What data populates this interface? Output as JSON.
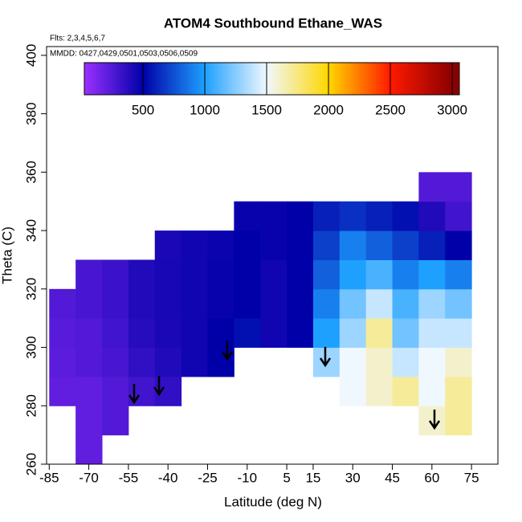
{
  "chart_data": {
    "type": "heatmap",
    "title": "ATOM4 Southbound Ethane_WAS",
    "annotations": [
      "Flts: 2,3,4,5,6,7",
      "MMDD: 0427,0429,0501,0503,0506,0509"
    ],
    "xlabel": "Latitude (deg N)",
    "ylabel": "Theta (C)",
    "xlim": [
      -86,
      85
    ],
    "xticks": [
      -85,
      -70,
      -55,
      -40,
      -25,
      -10,
      5,
      15,
      30,
      45,
      60,
      75
    ],
    "ylim": [
      260,
      403
    ],
    "yticks": [
      260,
      280,
      300,
      320,
      340,
      360,
      380,
      400
    ],
    "x_edges": [
      -85,
      -75,
      -65,
      -55,
      -45,
      -35,
      -25,
      -15,
      -5,
      5,
      15,
      25,
      35,
      45,
      55,
      65,
      75
    ],
    "y_edges": [
      260,
      270,
      280,
      290,
      300,
      310,
      320,
      330,
      340,
      350,
      360
    ],
    "z": [
      [
        null,
        200,
        null,
        null,
        null,
        null,
        null,
        null,
        null,
        null,
        null,
        null,
        null,
        null,
        null,
        null
      ],
      [
        null,
        200,
        250,
        null,
        null,
        null,
        null,
        null,
        null,
        null,
        null,
        null,
        null,
        null,
        1600,
        1700
      ],
      [
        200,
        200,
        250,
        300,
        350,
        null,
        null,
        null,
        null,
        null,
        null,
        1500,
        1600,
        1700,
        1500,
        1700
      ],
      [
        220,
        250,
        280,
        350,
        400,
        450,
        500,
        null,
        null,
        null,
        1300,
        1500,
        1600,
        1400,
        1500,
        1600
      ],
      [
        230,
        250,
        300,
        380,
        420,
        450,
        500,
        550,
        450,
        500,
        1000,
        1300,
        1700,
        1200,
        1400,
        1400
      ],
      [
        250,
        280,
        320,
        400,
        430,
        450,
        480,
        500,
        450,
        500,
        900,
        1200,
        1400,
        1100,
        1300,
        1200
      ],
      [
        null,
        280,
        320,
        400,
        430,
        450,
        480,
        500,
        450,
        500,
        800,
        1000,
        1100,
        900,
        1000,
        900
      ],
      [
        null,
        null,
        null,
        null,
        420,
        450,
        470,
        500,
        480,
        500,
        700,
        900,
        800,
        700,
        600,
        500
      ],
      [
        null,
        null,
        null,
        null,
        null,
        null,
        null,
        480,
        480,
        500,
        600,
        650,
        600,
        550,
        400,
        300
      ],
      [
        null,
        null,
        null,
        null,
        null,
        null,
        null,
        null,
        null,
        null,
        null,
        null,
        null,
        null,
        250,
        250
      ]
    ],
    "clim": [
      26,
      3058
    ],
    "cticks": [
      500,
      1000,
      1500,
      2000,
      2500,
      3000
    ],
    "colormap": [
      {
        "value": 26,
        "color": "#9b30ff"
      },
      {
        "value": 500,
        "color": "#0000a8"
      },
      {
        "value": 1000,
        "color": "#1ea0ff"
      },
      {
        "value": 1500,
        "color": "#f0f8ff"
      },
      {
        "value": 2000,
        "color": "#ffd700"
      },
      {
        "value": 2500,
        "color": "#ff1a00"
      },
      {
        "value": 3000,
        "color": "#8b0000"
      }
    ]
  }
}
